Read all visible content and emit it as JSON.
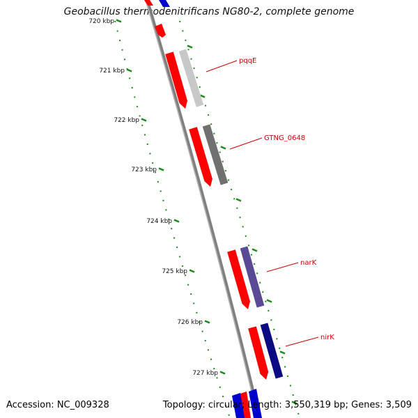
{
  "title": "Geobacillus thermodenitrificans NG80-2, complete genome",
  "accession": "Accession: NC_009328",
  "stats": "Topology: circular; Length: 3,550,319 bp; Genes: 3,509",
  "colors": {
    "backbone": "#808080",
    "cds": "#ff0000",
    "tick": "#1a8a1a",
    "label": "#cc0000",
    "pqqE": "#c8c8c8",
    "GTNG_0648": "#707070",
    "narK": "#5a4a96",
    "nirK": "#0a0a82",
    "edge_blue": "#0000cc"
  },
  "ticks": [
    {
      "label": "720 kbp"
    },
    {
      "label": "721 kbp"
    },
    {
      "label": "722 kbp"
    },
    {
      "label": "723 kbp"
    },
    {
      "label": "724 kbp"
    },
    {
      "label": "725 kbp"
    },
    {
      "label": "726 kbp"
    },
    {
      "label": "727 kbp"
    }
  ],
  "genes": [
    {
      "name": "pqqE"
    },
    {
      "name": "GTNG_0648"
    },
    {
      "name": "narK"
    },
    {
      "name": "nirK"
    }
  ]
}
